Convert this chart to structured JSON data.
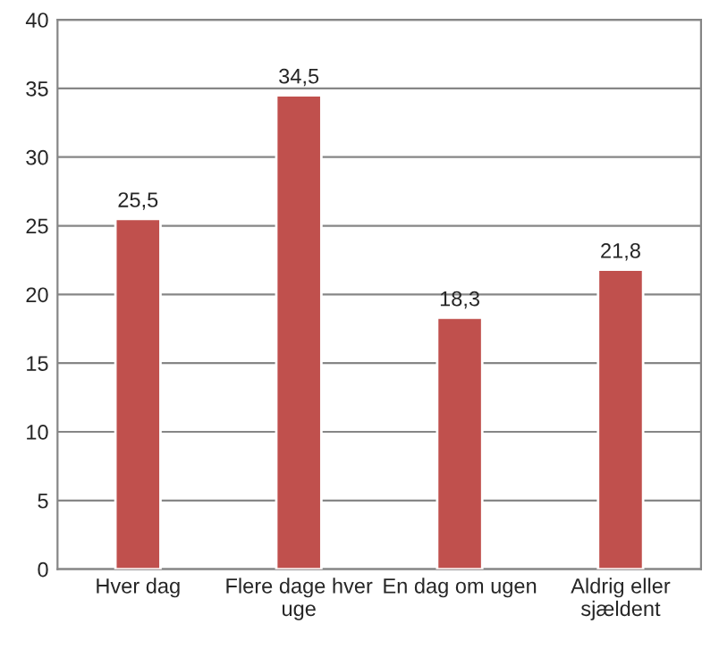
{
  "chart_data": {
    "type": "bar",
    "categories": [
      "Hver dag",
      "Flere dage hver\nuge",
      "En dag om ugen",
      "Aldrig eller\nsjældent"
    ],
    "values": [
      25.5,
      34.5,
      18.3,
      21.8
    ],
    "value_labels": [
      "25,5",
      "34,5",
      "18,3",
      "21,8"
    ],
    "color": "#c0504d",
    "ylim": [
      0,
      40
    ],
    "yticks": [
      0,
      5,
      10,
      15,
      20,
      25,
      30,
      35,
      40
    ],
    "grid": "y",
    "legend": false
  }
}
